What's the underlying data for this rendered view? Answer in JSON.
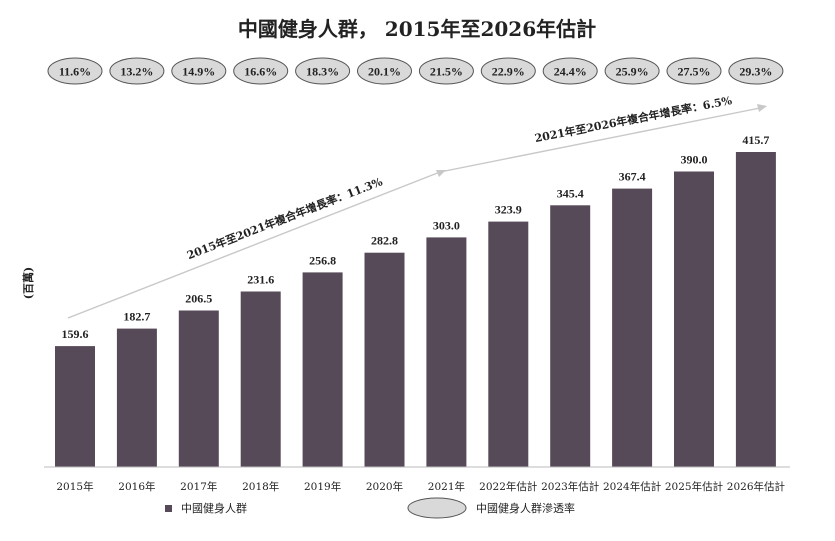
{
  "chart_data": {
    "type": "bar",
    "title": "中國健身人群， 2015年至2026年估計",
    "ylabel": "(百萬)",
    "ylim": [
      0,
      450
    ],
    "categories": [
      "2015年",
      "2016年",
      "2017年",
      "2018年",
      "2019年",
      "2020年",
      "2021年",
      "2022年估計",
      "2023年估計",
      "2024年估計",
      "2025年估計",
      "2026年估計"
    ],
    "series": [
      {
        "name": "中國健身人群",
        "values": [
          159.6,
          182.7,
          206.5,
          231.6,
          256.8,
          282.8,
          303.0,
          323.9,
          345.4,
          367.4,
          390.0,
          415.7
        ],
        "value_labels": [
          "159.6",
          "182.7",
          "206.5",
          "231.6",
          "256.8",
          "282.8",
          "303.0",
          "323.9",
          "345.4",
          "367.4",
          "390.0",
          "415.7"
        ],
        "color": "#574a58"
      },
      {
        "name": "中國健身人群滲透率",
        "values": [
          11.6,
          13.2,
          14.9,
          16.6,
          18.3,
          20.1,
          21.5,
          22.9,
          24.4,
          25.9,
          27.5,
          29.3
        ],
        "labels": [
          "11.6%",
          "13.2%",
          "14.9%",
          "16.6%",
          "18.3%",
          "20.1%",
          "21.5%",
          "22.9%",
          "24.4%",
          "25.9%",
          "27.5%",
          "29.3%"
        ],
        "color": "#d9d9d9"
      }
    ],
    "annotations": [
      {
        "text": "2015年至2021年複合年增長率：11.3%"
      },
      {
        "text": "2021年至2026年複合年增長率：6.5%"
      }
    ],
    "legend_position": "bottom",
    "grid": false
  }
}
